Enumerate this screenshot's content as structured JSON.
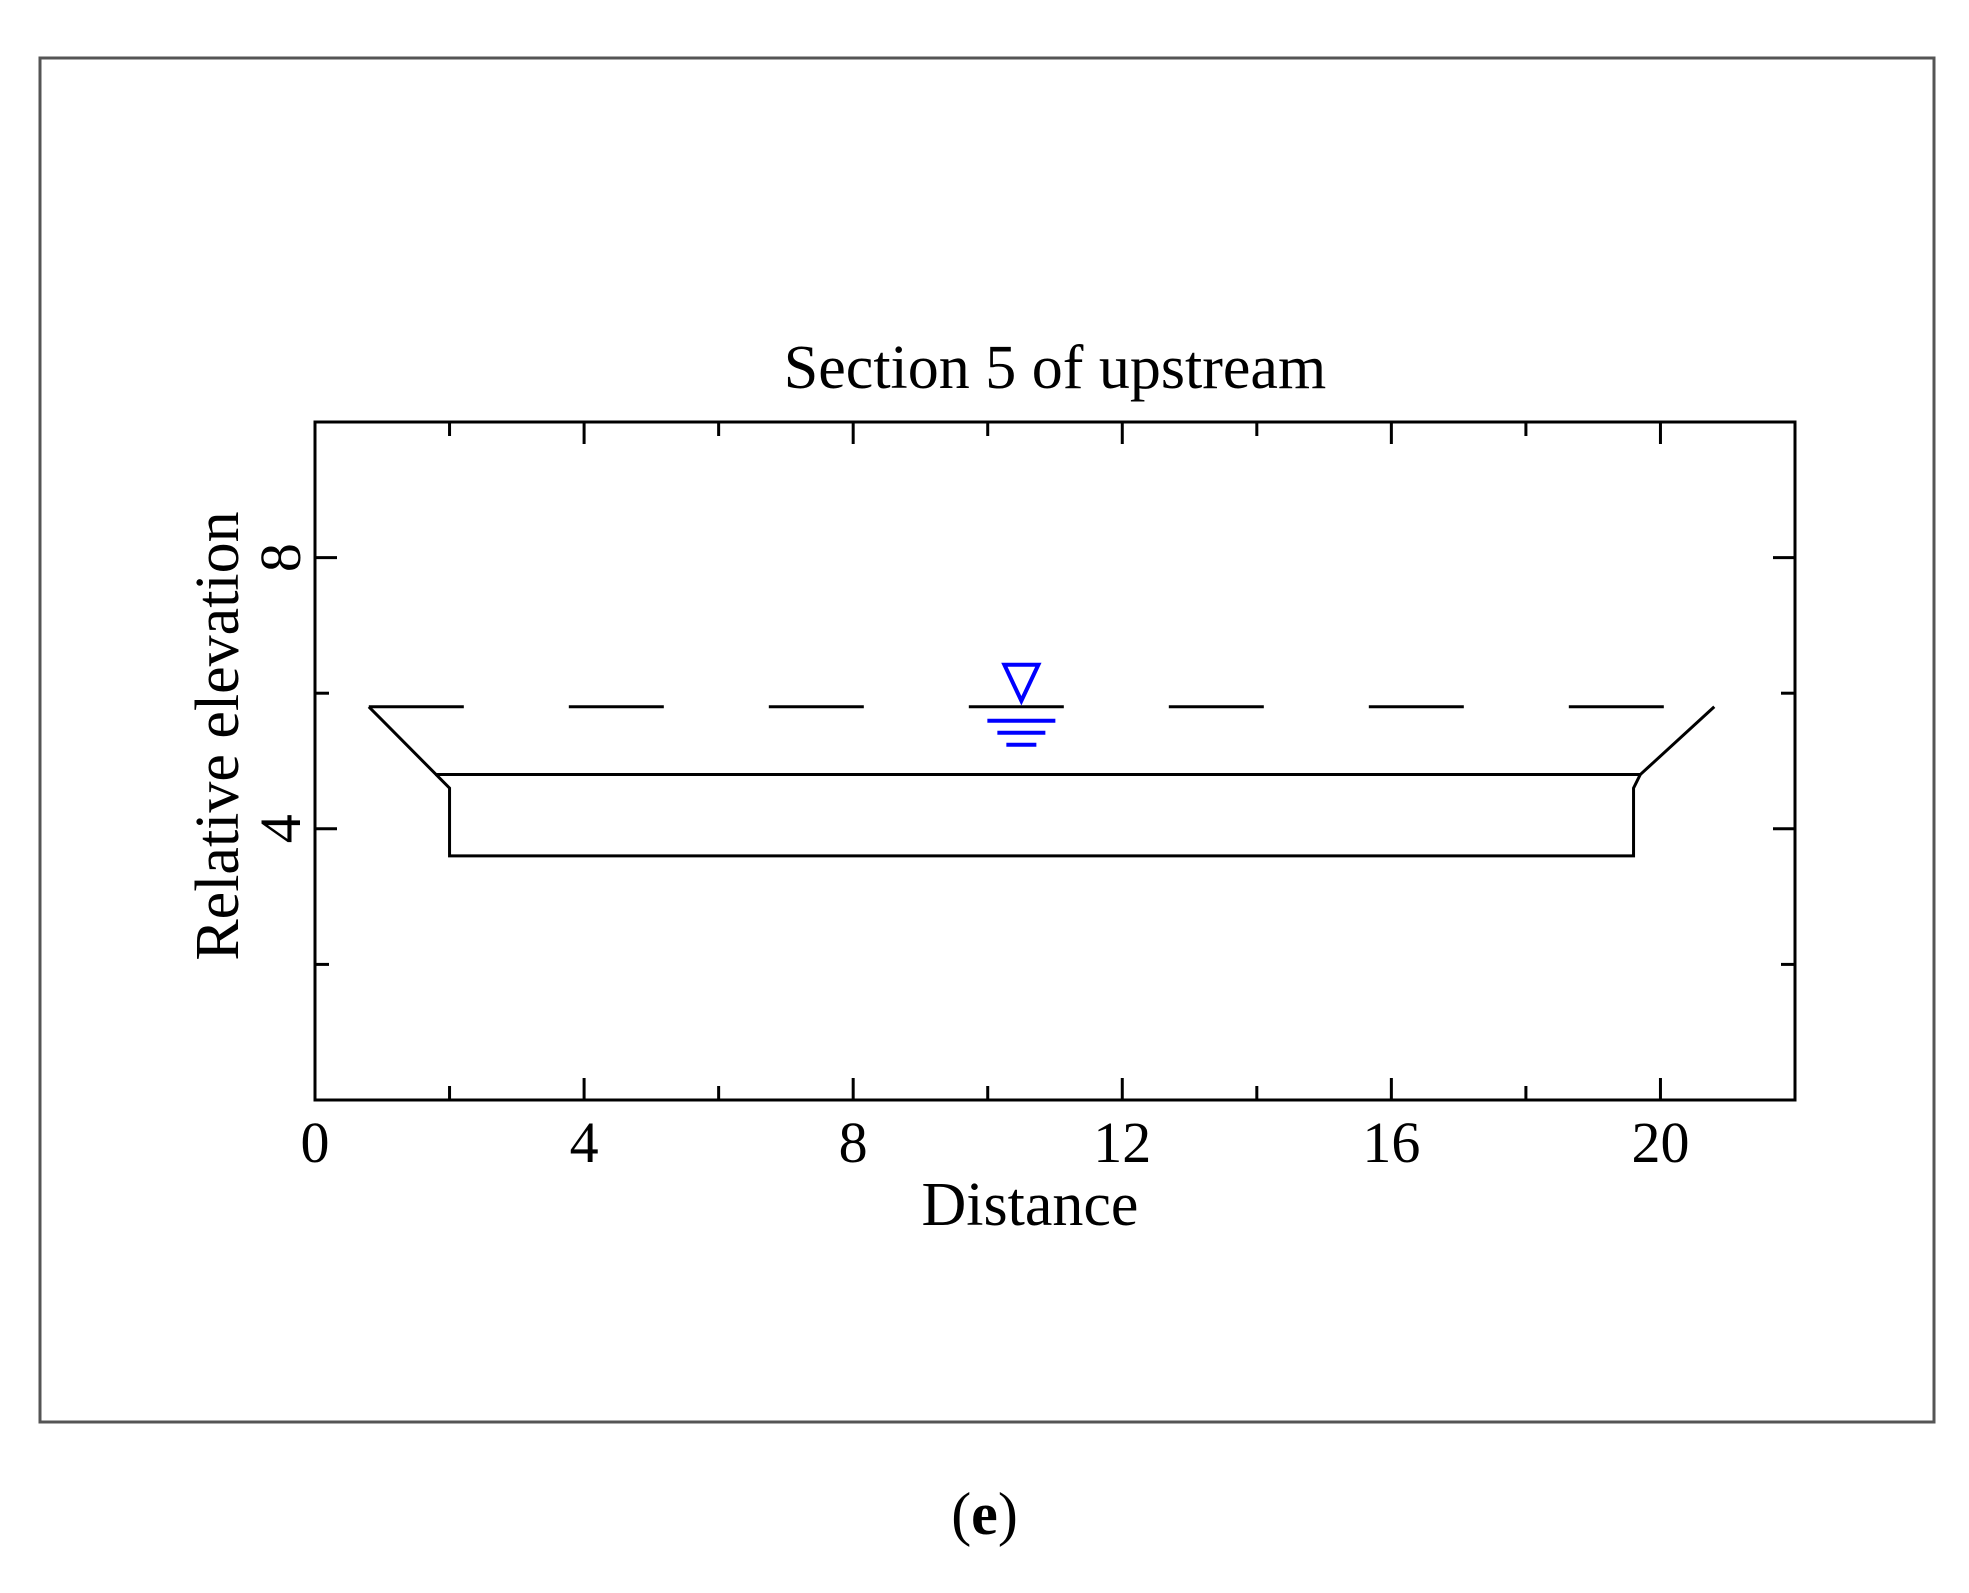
{
  "chart_data": {
    "type": "line",
    "title": "Section 5 of upstream",
    "xlabel": "Distance",
    "ylabel": "Relative elevation",
    "xlim": [
      0,
      22
    ],
    "ylim": [
      0,
      10
    ],
    "x_ticks": [
      0,
      4,
      8,
      12,
      16,
      20
    ],
    "y_ticks": [
      4,
      8
    ],
    "x_minor_step": 2,
    "y_minor_step": 2,
    "grid": false,
    "series": [
      {
        "style": "solid",
        "color": "#000000",
        "points": [
          [
            0.8,
            5.8
          ],
          [
            1.8,
            4.8
          ],
          [
            19.7,
            4.8
          ],
          [
            20.8,
            5.8
          ]
        ]
      },
      {
        "style": "solid",
        "color": "#000000",
        "points": [
          [
            1.8,
            4.8
          ],
          [
            2.0,
            4.6
          ],
          [
            2.0,
            3.6
          ],
          [
            19.6,
            3.6
          ],
          [
            19.6,
            4.6
          ],
          [
            19.7,
            4.8
          ]
        ]
      },
      {
        "style": "dashed",
        "color": "#000000",
        "points": [
          [
            0.8,
            5.8
          ],
          [
            20.8,
            5.8
          ]
        ]
      }
    ],
    "water_level": {
      "x": 10.5,
      "y": 5.8,
      "color": "#0000ff"
    }
  },
  "caption": {
    "open": "(",
    "letter": "e",
    "close": ")"
  }
}
